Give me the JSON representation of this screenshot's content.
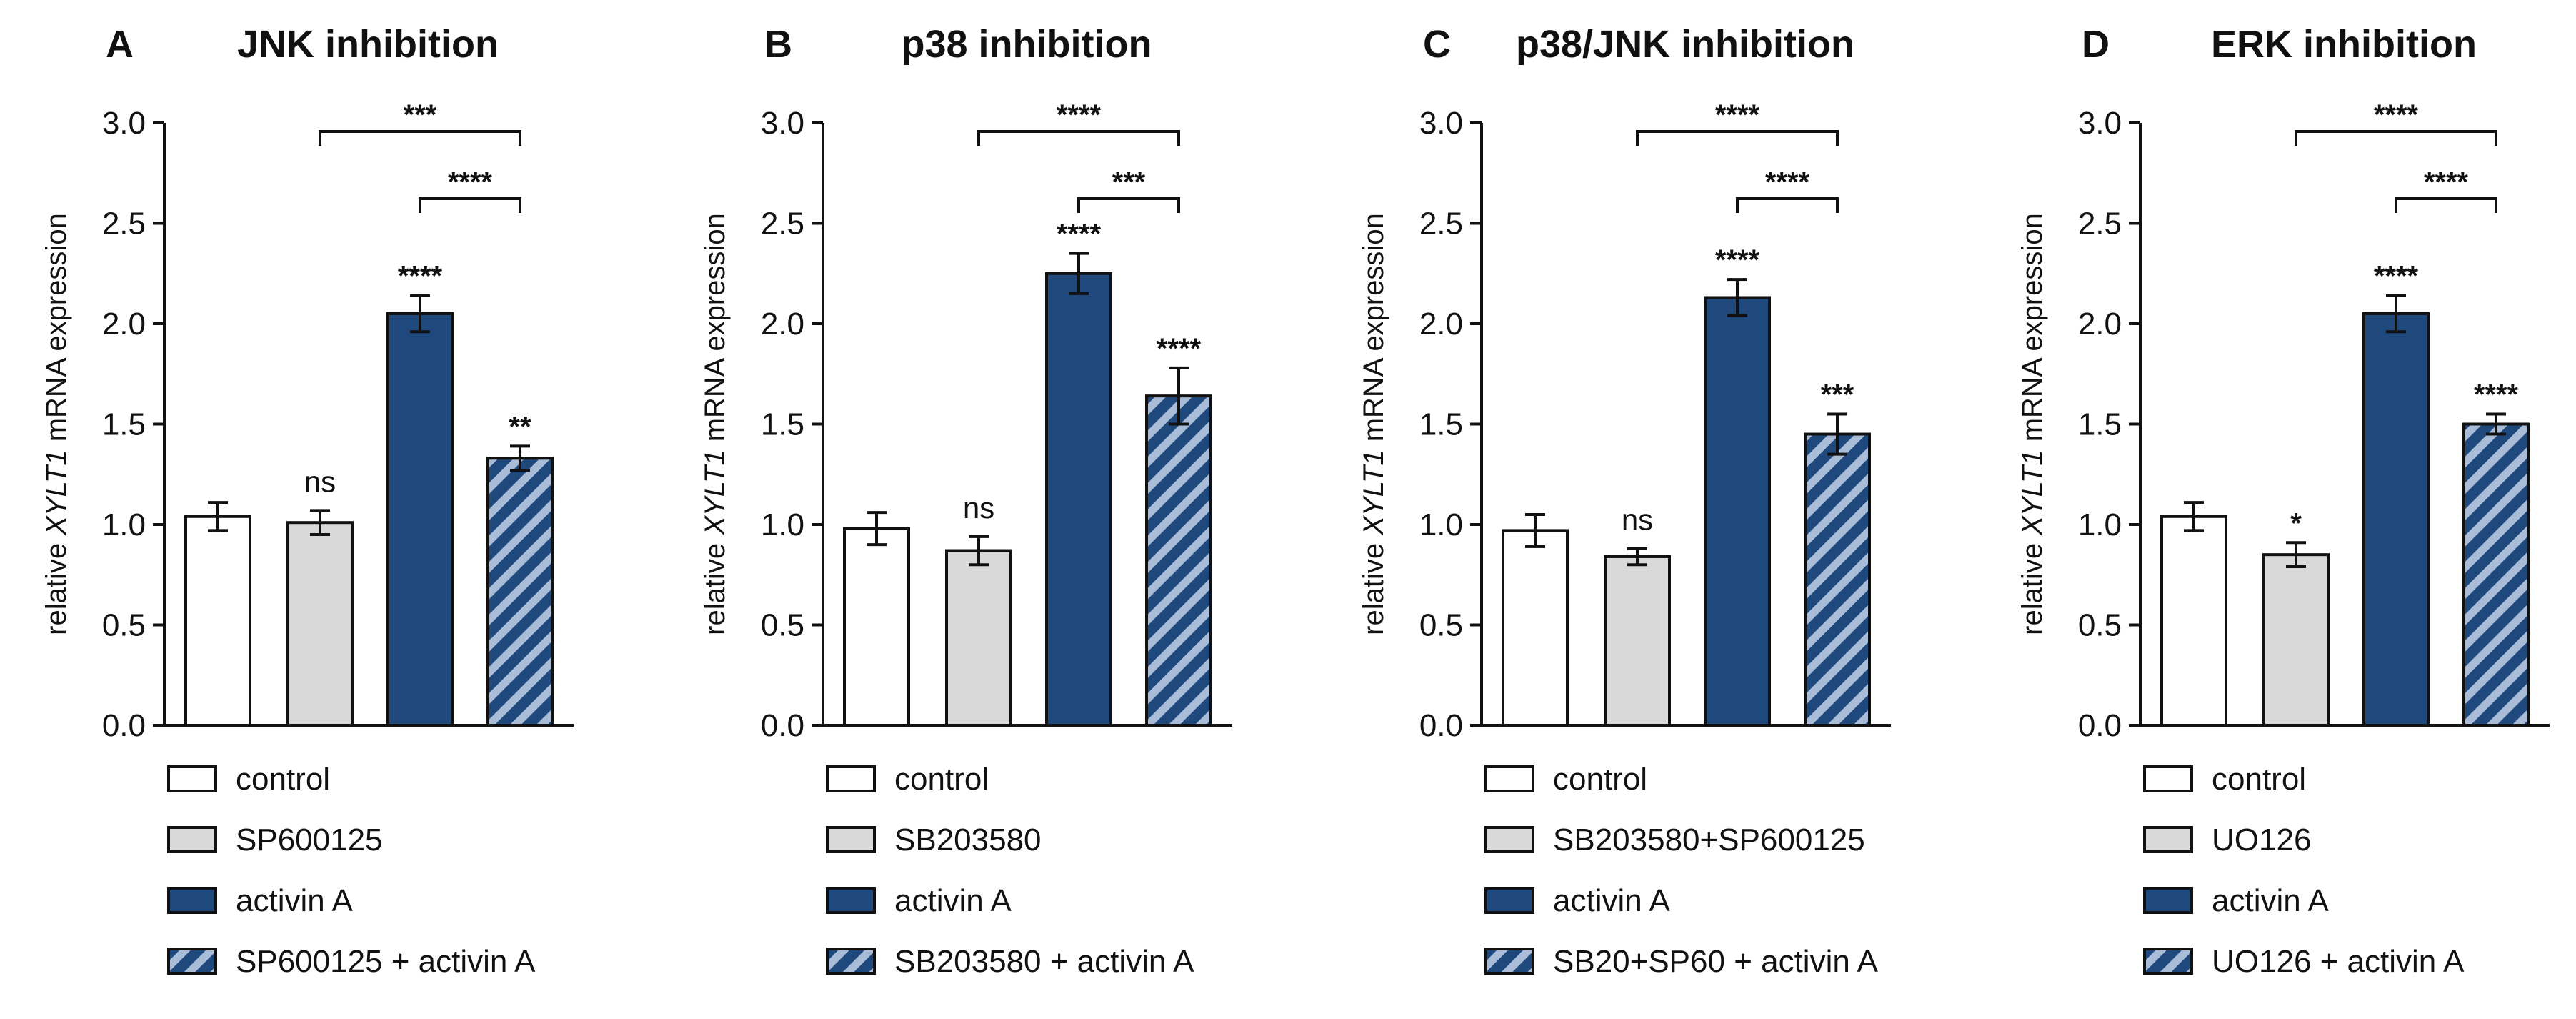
{
  "colors": {
    "control": "#ffffff",
    "inhibitor": "#d9d9d9",
    "activin": "#1f497d",
    "hatch_line": "#a9bcd8",
    "axis": "#111111"
  },
  "legend_labels": {
    "control": "control",
    "activin": "activin A"
  },
  "chart_data": [
    {
      "type": "bar",
      "panel": "A",
      "title": "JNK inhibition",
      "ylabel_prefix": "relative ",
      "ylabel_gene": "XYLT1",
      "ylabel_suffix": " mRNA expression",
      "ylim": [
        0,
        3
      ],
      "yticks": [
        "0.0",
        "0.5",
        "1.0",
        "1.5",
        "2.0",
        "2.5",
        "3.0"
      ],
      "categories": [
        "control",
        "SP600125",
        "activin A",
        "SP600125 + activin A"
      ],
      "values": [
        1.04,
        1.01,
        2.05,
        1.33
      ],
      "errors": [
        0.07,
        0.06,
        0.09,
        0.06
      ],
      "bar_labels": [
        "",
        "ns",
        "****",
        "**"
      ],
      "brackets": [
        {
          "from": 1,
          "to": 3,
          "label": "***"
        },
        {
          "from": 2,
          "to": 3,
          "label": "****"
        }
      ],
      "legend": [
        "control",
        "SP600125",
        "activin A",
        "SP600125 + activin A"
      ]
    },
    {
      "type": "bar",
      "panel": "B",
      "title": "p38 inhibition",
      "ylabel_prefix": "relative ",
      "ylabel_gene": "XYLT1",
      "ylabel_suffix": " mRNA expression",
      "ylim": [
        0,
        3
      ],
      "yticks": [
        "0.0",
        "0.5",
        "1.0",
        "1.5",
        "2.0",
        "2.5",
        "3.0"
      ],
      "categories": [
        "control",
        "SB203580",
        "activin A",
        "SB203580 + activin A"
      ],
      "values": [
        0.98,
        0.87,
        2.25,
        1.64
      ],
      "errors": [
        0.08,
        0.07,
        0.1,
        0.14
      ],
      "bar_labels": [
        "",
        "ns",
        "****",
        "****"
      ],
      "brackets": [
        {
          "from": 1,
          "to": 3,
          "label": "****"
        },
        {
          "from": 2,
          "to": 3,
          "label": "***"
        }
      ],
      "legend": [
        "control",
        "SB203580",
        "activin A",
        "SB203580 + activin A"
      ]
    },
    {
      "type": "bar",
      "panel": "C",
      "title": "p38/JNK inhibition",
      "ylabel_prefix": "relative ",
      "ylabel_gene": "XYLT1",
      "ylabel_suffix": " mRNA expression",
      "ylim": [
        0,
        3
      ],
      "yticks": [
        "0.0",
        "0.5",
        "1.0",
        "1.5",
        "2.0",
        "2.5",
        "3.0"
      ],
      "categories": [
        "control",
        "SB203580+SP600125",
        "activin A",
        "SB20+SP60 + activin A"
      ],
      "values": [
        0.97,
        0.84,
        2.13,
        1.45
      ],
      "errors": [
        0.08,
        0.04,
        0.09,
        0.1
      ],
      "bar_labels": [
        "",
        "ns",
        "****",
        "***"
      ],
      "brackets": [
        {
          "from": 1,
          "to": 3,
          "label": "****"
        },
        {
          "from": 2,
          "to": 3,
          "label": "****"
        }
      ],
      "legend": [
        "control",
        "SB203580+SP600125",
        "activin A",
        "SB20+SP60 + activin A"
      ]
    },
    {
      "type": "bar",
      "panel": "D",
      "title": "ERK inhibition",
      "ylabel_prefix": "relative ",
      "ylabel_gene": "XYLT1",
      "ylabel_suffix": " mRNA expression",
      "ylim": [
        0,
        3
      ],
      "yticks": [
        "0.0",
        "0.5",
        "1.0",
        "1.5",
        "2.0",
        "2.5",
        "3.0"
      ],
      "categories": [
        "control",
        "UO126",
        "activin A",
        "UO126 + activin A"
      ],
      "values": [
        1.04,
        0.85,
        2.05,
        1.5
      ],
      "errors": [
        0.07,
        0.06,
        0.09,
        0.05
      ],
      "bar_labels": [
        "",
        "*",
        "****",
        "****"
      ],
      "brackets": [
        {
          "from": 1,
          "to": 3,
          "label": "****"
        },
        {
          "from": 2,
          "to": 3,
          "label": "****"
        }
      ],
      "legend": [
        "control",
        "UO126",
        "activin A",
        "UO126 + activin A"
      ]
    }
  ]
}
